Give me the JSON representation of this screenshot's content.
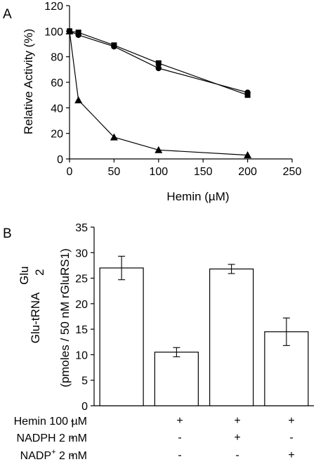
{
  "chart_data": [
    {
      "panel": "A",
      "type": "line",
      "xlabel": "Hemin (µM)",
      "ylabel": "Relative Activity (%)",
      "xlim": [
        0,
        250
      ],
      "ylim": [
        0,
        120
      ],
      "xticks": [
        "0",
        "50",
        "100",
        "150",
        "200",
        "250"
      ],
      "yticks": [
        "0",
        "20",
        "40",
        "60",
        "80",
        "100",
        "120"
      ],
      "grid": false,
      "series": [
        {
          "marker": "square",
          "x": [
            0,
            10,
            50,
            100,
            200
          ],
          "y": [
            100,
            99,
            89,
            75,
            50
          ]
        },
        {
          "marker": "circle",
          "x": [
            0,
            10,
            50,
            100,
            200
          ],
          "y": [
            100,
            97,
            88,
            71,
            52
          ]
        },
        {
          "marker": "triangle",
          "x": [
            0,
            10,
            50,
            100,
            200
          ],
          "y": [
            100,
            46,
            17,
            7,
            3
          ]
        }
      ]
    },
    {
      "panel": "B",
      "type": "bar",
      "ylabel_main": "Glu-tRNA",
      "ylabel_sup": "Glu",
      "ylabel_sub": "2",
      "ylabel_2": "(pmoles / 50 nM rGluRS1)",
      "ylim": [
        0,
        35
      ],
      "yticks": [
        "0",
        "5",
        "10",
        "15",
        "20",
        "25",
        "30",
        "35"
      ],
      "grid": false,
      "values": [
        27,
        10.5,
        26.8,
        14.5
      ],
      "errors": [
        2.3,
        0.9,
        0.9,
        2.7
      ],
      "conditions": [
        {
          "label": "Hemin 100 µM",
          "values": [
            "-",
            "+",
            "+",
            "+"
          ]
        },
        {
          "label": "NADPH 2 mM",
          "values": [
            "-",
            "-",
            "+",
            "-"
          ]
        },
        {
          "label_pre": "NADP",
          "label_sup": "+",
          "label_post": "2 mM",
          "values": [
            "-",
            "-",
            "-",
            "+"
          ]
        }
      ]
    }
  ]
}
